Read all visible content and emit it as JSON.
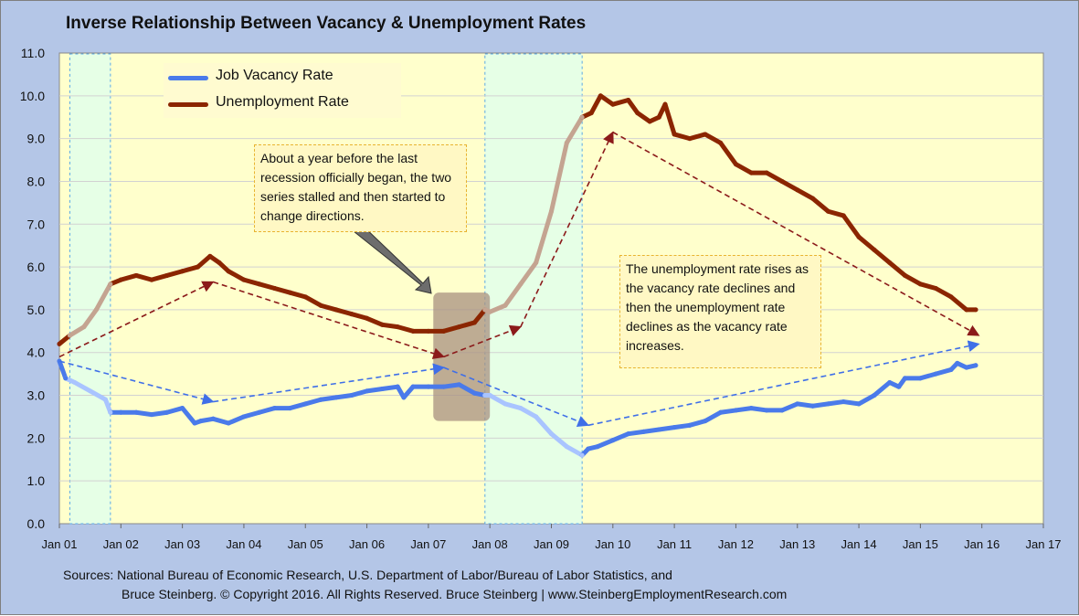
{
  "title": "Inverse Relationship Between Vacancy & Unemployment Rates",
  "legend": [
    {
      "label": "Job Vacancy Rate",
      "color": "#4a7aea"
    },
    {
      "label": "Unemployment Rate",
      "color": "#8b2500"
    }
  ],
  "annotations": [
    "About a year before the last recession officially began, the two series stalled and then started to change directions.",
    "The unemployment rate rises as the vacancy rate declines and then the unemployment rate declines as the vacancy rate increases."
  ],
  "sources": {
    "line1": "Sources: National Bureau of Economic Research, U.S. Department of Labor/Bureau of Labor Statistics, and",
    "line2": "Bruce Steinberg.  © Copyright 2016. All Rights Reserved. Bruce Steinberg | www.SteinbergEmploymentResearch.com"
  },
  "chart_data": {
    "type": "line",
    "title": "Inverse Relationship Between Vacancy & Unemployment Rates",
    "xlabel": "",
    "ylabel": "",
    "ylim": [
      0,
      11
    ],
    "y_ticks": [
      "0.0",
      "1.0",
      "2.0",
      "3.0",
      "4.0",
      "5.0",
      "6.0",
      "7.0",
      "8.0",
      "9.0",
      "10.0",
      "11.0"
    ],
    "x_ticks": [
      "Jan 01",
      "Jan 02",
      "Jan 03",
      "Jan 04",
      "Jan 05",
      "Jan 06",
      "Jan 07",
      "Jan 08",
      "Jan 09",
      "Jan 10",
      "Jan 11",
      "Jan 12",
      "Jan 13",
      "Jan 14",
      "Jan 15",
      "Jan 16",
      "Jan 17"
    ],
    "xlim_years": [
      2001,
      2017
    ],
    "grid": true,
    "legend_position": "top-left",
    "colors": {
      "plot_background": "#ffffcc",
      "recession_band": "#e6ffe6",
      "vacancy": "#4a7aea",
      "vacancy_recession": "#a9c4ff",
      "unemployment": "#8b2500",
      "unemployment_recession": "#c4a491",
      "vacancy_arrows": "#3f6fe8",
      "unemployment_arrows": "#8b1a1a",
      "highlight_box": "#a89080"
    },
    "recessions": [
      {
        "start": 2001.17,
        "end": 2001.83
      },
      {
        "start": 2007.92,
        "end": 2009.5
      }
    ],
    "highlight_period": {
      "start": 2007.08,
      "end": 2008.0,
      "y_range": [
        2.4,
        5.4
      ]
    },
    "series": [
      {
        "name": "Job Vacancy Rate",
        "x": [
          2001.0,
          2001.1,
          2001.25,
          2001.5,
          2001.75,
          2001.83,
          2002.0,
          2002.25,
          2002.5,
          2002.75,
          2003.0,
          2003.2,
          2003.3,
          2003.5,
          2003.75,
          2004.0,
          2004.25,
          2004.5,
          2004.75,
          2005.0,
          2005.25,
          2005.5,
          2005.75,
          2006.0,
          2006.25,
          2006.5,
          2006.6,
          2006.75,
          2007.0,
          2007.25,
          2007.5,
          2007.75,
          2007.92,
          2008.0,
          2008.25,
          2008.5,
          2008.75,
          2009.0,
          2009.25,
          2009.5,
          2009.6,
          2009.75,
          2010.0,
          2010.25,
          2010.5,
          2010.75,
          2011.0,
          2011.25,
          2011.5,
          2011.75,
          2012.0,
          2012.25,
          2012.5,
          2012.75,
          2013.0,
          2013.25,
          2013.5,
          2013.75,
          2014.0,
          2014.25,
          2014.5,
          2014.65,
          2014.75,
          2015.0,
          2015.25,
          2015.5,
          2015.6,
          2015.75,
          2015.9
        ],
        "values": [
          3.8,
          3.4,
          3.3,
          3.1,
          2.9,
          2.6,
          2.6,
          2.6,
          2.55,
          2.6,
          2.7,
          2.35,
          2.4,
          2.45,
          2.35,
          2.5,
          2.6,
          2.7,
          2.7,
          2.8,
          2.9,
          2.95,
          3.0,
          3.1,
          3.15,
          3.2,
          2.95,
          3.2,
          3.2,
          3.2,
          3.25,
          3.05,
          3.0,
          3.0,
          2.8,
          2.7,
          2.5,
          2.1,
          1.8,
          1.6,
          1.75,
          1.8,
          1.95,
          2.1,
          2.15,
          2.2,
          2.25,
          2.3,
          2.4,
          2.6,
          2.65,
          2.7,
          2.65,
          2.65,
          2.8,
          2.75,
          2.8,
          2.85,
          2.8,
          3.0,
          3.3,
          3.2,
          3.4,
          3.4,
          3.5,
          3.6,
          3.75,
          3.65,
          3.7
        ]
      },
      {
        "name": "Unemployment Rate",
        "x": [
          2001.0,
          2001.17,
          2001.4,
          2001.6,
          2001.83,
          2002.0,
          2002.25,
          2002.5,
          2002.75,
          2003.0,
          2003.25,
          2003.45,
          2003.6,
          2003.75,
          2004.0,
          2004.25,
          2004.5,
          2004.75,
          2005.0,
          2005.25,
          2005.5,
          2005.75,
          2006.0,
          2006.25,
          2006.5,
          2006.75,
          2007.0,
          2007.25,
          2007.5,
          2007.75,
          2007.92,
          2008.0,
          2008.25,
          2008.5,
          2008.75,
          2009.0,
          2009.25,
          2009.5,
          2009.65,
          2009.8,
          2010.0,
          2010.25,
          2010.4,
          2010.6,
          2010.75,
          2010.85,
          2011.0,
          2011.25,
          2011.5,
          2011.75,
          2012.0,
          2012.25,
          2012.5,
          2012.75,
          2013.0,
          2013.25,
          2013.5,
          2013.75,
          2014.0,
          2014.25,
          2014.5,
          2014.75,
          2015.0,
          2015.25,
          2015.5,
          2015.75,
          2015.9
        ],
        "values": [
          4.2,
          4.4,
          4.6,
          5.0,
          5.6,
          5.7,
          5.8,
          5.7,
          5.8,
          5.9,
          6.0,
          6.25,
          6.1,
          5.9,
          5.7,
          5.6,
          5.5,
          5.4,
          5.3,
          5.1,
          5.0,
          4.9,
          4.8,
          4.65,
          4.6,
          4.5,
          4.5,
          4.5,
          4.6,
          4.7,
          5.0,
          4.95,
          5.1,
          5.6,
          6.1,
          7.3,
          8.9,
          9.5,
          9.6,
          10.0,
          9.8,
          9.9,
          9.6,
          9.4,
          9.5,
          9.8,
          9.1,
          9.0,
          9.1,
          8.9,
          8.4,
          8.2,
          8.2,
          8.0,
          7.8,
          7.6,
          7.3,
          7.2,
          6.7,
          6.4,
          6.1,
          5.8,
          5.6,
          5.5,
          5.3,
          5.0,
          5.0
        ]
      }
    ],
    "trend_arrows": [
      {
        "series": "Job Vacancy Rate",
        "points": [
          [
            2001.0,
            3.8
          ],
          [
            2003.5,
            2.85
          ],
          [
            2007.25,
            3.65
          ],
          [
            2009.6,
            2.3
          ],
          [
            2015.95,
            4.2
          ]
        ]
      },
      {
        "series": "Unemployment Rate",
        "points": [
          [
            2001.0,
            3.9
          ],
          [
            2003.5,
            5.65
          ],
          [
            2007.25,
            3.9
          ],
          [
            2008.5,
            4.6
          ],
          [
            2010.0,
            9.15
          ],
          [
            2015.95,
            4.4
          ]
        ]
      }
    ]
  }
}
